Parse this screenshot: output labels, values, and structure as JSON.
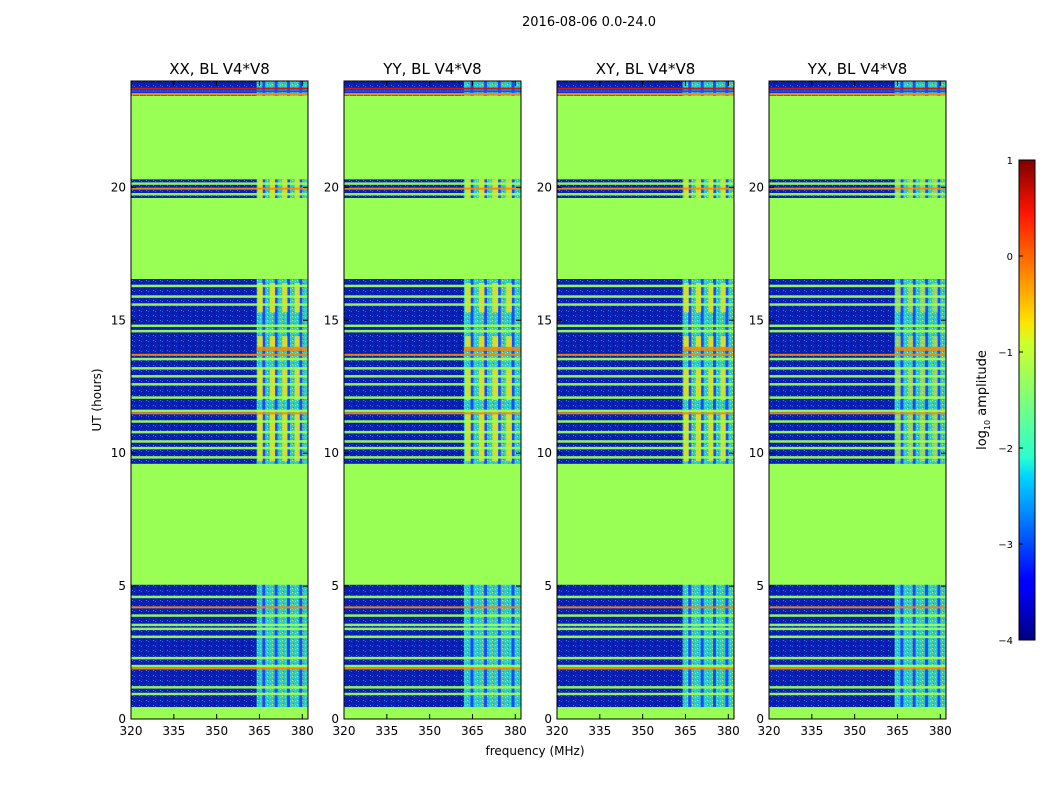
{
  "figure": {
    "suptitle": "2016-08-06 0.0-24.0"
  },
  "palette": {
    "flagged": "#99ff55",
    "noise_dark": "#0a1eb0",
    "noise_mid": "#1a4cff",
    "band_cyan": "#38e8c8",
    "band_yellow": "#e8e020",
    "rfi_orange": "#f08a10",
    "rfi_red": "#c81a10"
  },
  "chart_data": [
    {
      "type": "heatmap",
      "title": "XX, BL V4*V8",
      "xlabel": "",
      "ylabel": "UT (hours)",
      "xlim": [
        320,
        382
      ],
      "ylim": [
        0,
        24
      ],
      "xticks": [
        320,
        335,
        350,
        365,
        380
      ],
      "yticks": [
        0,
        5,
        10,
        15,
        20
      ],
      "flagged_ut_ranges": [
        [
          0,
          0.45
        ],
        [
          5.05,
          9.6
        ],
        [
          16.55,
          19.6
        ],
        [
          20.3,
          23.45
        ]
      ],
      "bright_band_mhz": [
        364,
        383
      ],
      "brightness": "high"
    },
    {
      "type": "heatmap",
      "title": "YY, BL V4*V8",
      "xlabel": "frequency (MHz)",
      "ylabel": "",
      "xlim": [
        320,
        382
      ],
      "ylim": [
        0,
        24
      ],
      "xticks": [
        320,
        335,
        350,
        365,
        380
      ],
      "yticks": [
        0,
        5,
        10,
        15,
        20
      ],
      "flagged_ut_ranges": [
        [
          0,
          0.45
        ],
        [
          5.05,
          9.6
        ],
        [
          16.55,
          19.6
        ],
        [
          20.3,
          23.45
        ]
      ],
      "bright_band_mhz": [
        362,
        383
      ],
      "brightness": "high"
    },
    {
      "type": "heatmap",
      "title": "XY, BL V4*V8",
      "xlabel": "",
      "ylabel": "",
      "xlim": [
        320,
        382
      ],
      "ylim": [
        0,
        24
      ],
      "xticks": [
        320,
        335,
        350,
        365,
        380
      ],
      "yticks": [
        0,
        5,
        10,
        15,
        20
      ],
      "flagged_ut_ranges": [
        [
          0,
          0.45
        ],
        [
          5.05,
          9.6
        ],
        [
          16.55,
          19.6
        ],
        [
          20.3,
          23.45
        ]
      ],
      "bright_band_mhz": [
        364,
        383
      ],
      "brightness": "high"
    },
    {
      "type": "heatmap",
      "title": "YX, BL V4*V8",
      "xlabel": "",
      "ylabel": "",
      "xlim": [
        320,
        382
      ],
      "ylim": [
        0,
        24
      ],
      "xticks": [
        320,
        335,
        350,
        365,
        380
      ],
      "yticks": [
        0,
        5,
        10,
        15,
        20
      ],
      "flagged_ut_ranges": [
        [
          0,
          0.45
        ],
        [
          5.05,
          9.6
        ],
        [
          16.55,
          19.6
        ],
        [
          20.3,
          23.45
        ]
      ],
      "bright_band_mhz": [
        364,
        383
      ],
      "brightness": "medium"
    }
  ],
  "colorbar": {
    "label_prefix": "log",
    "label_sub": "10",
    "label_suffix": " amplitude",
    "range": [
      -4,
      1
    ],
    "ticks": [
      "1",
      "0",
      "−1",
      "−2",
      "−3",
      "−4"
    ],
    "tick_values": [
      1,
      0,
      -1,
      -2,
      -3,
      -4
    ]
  }
}
